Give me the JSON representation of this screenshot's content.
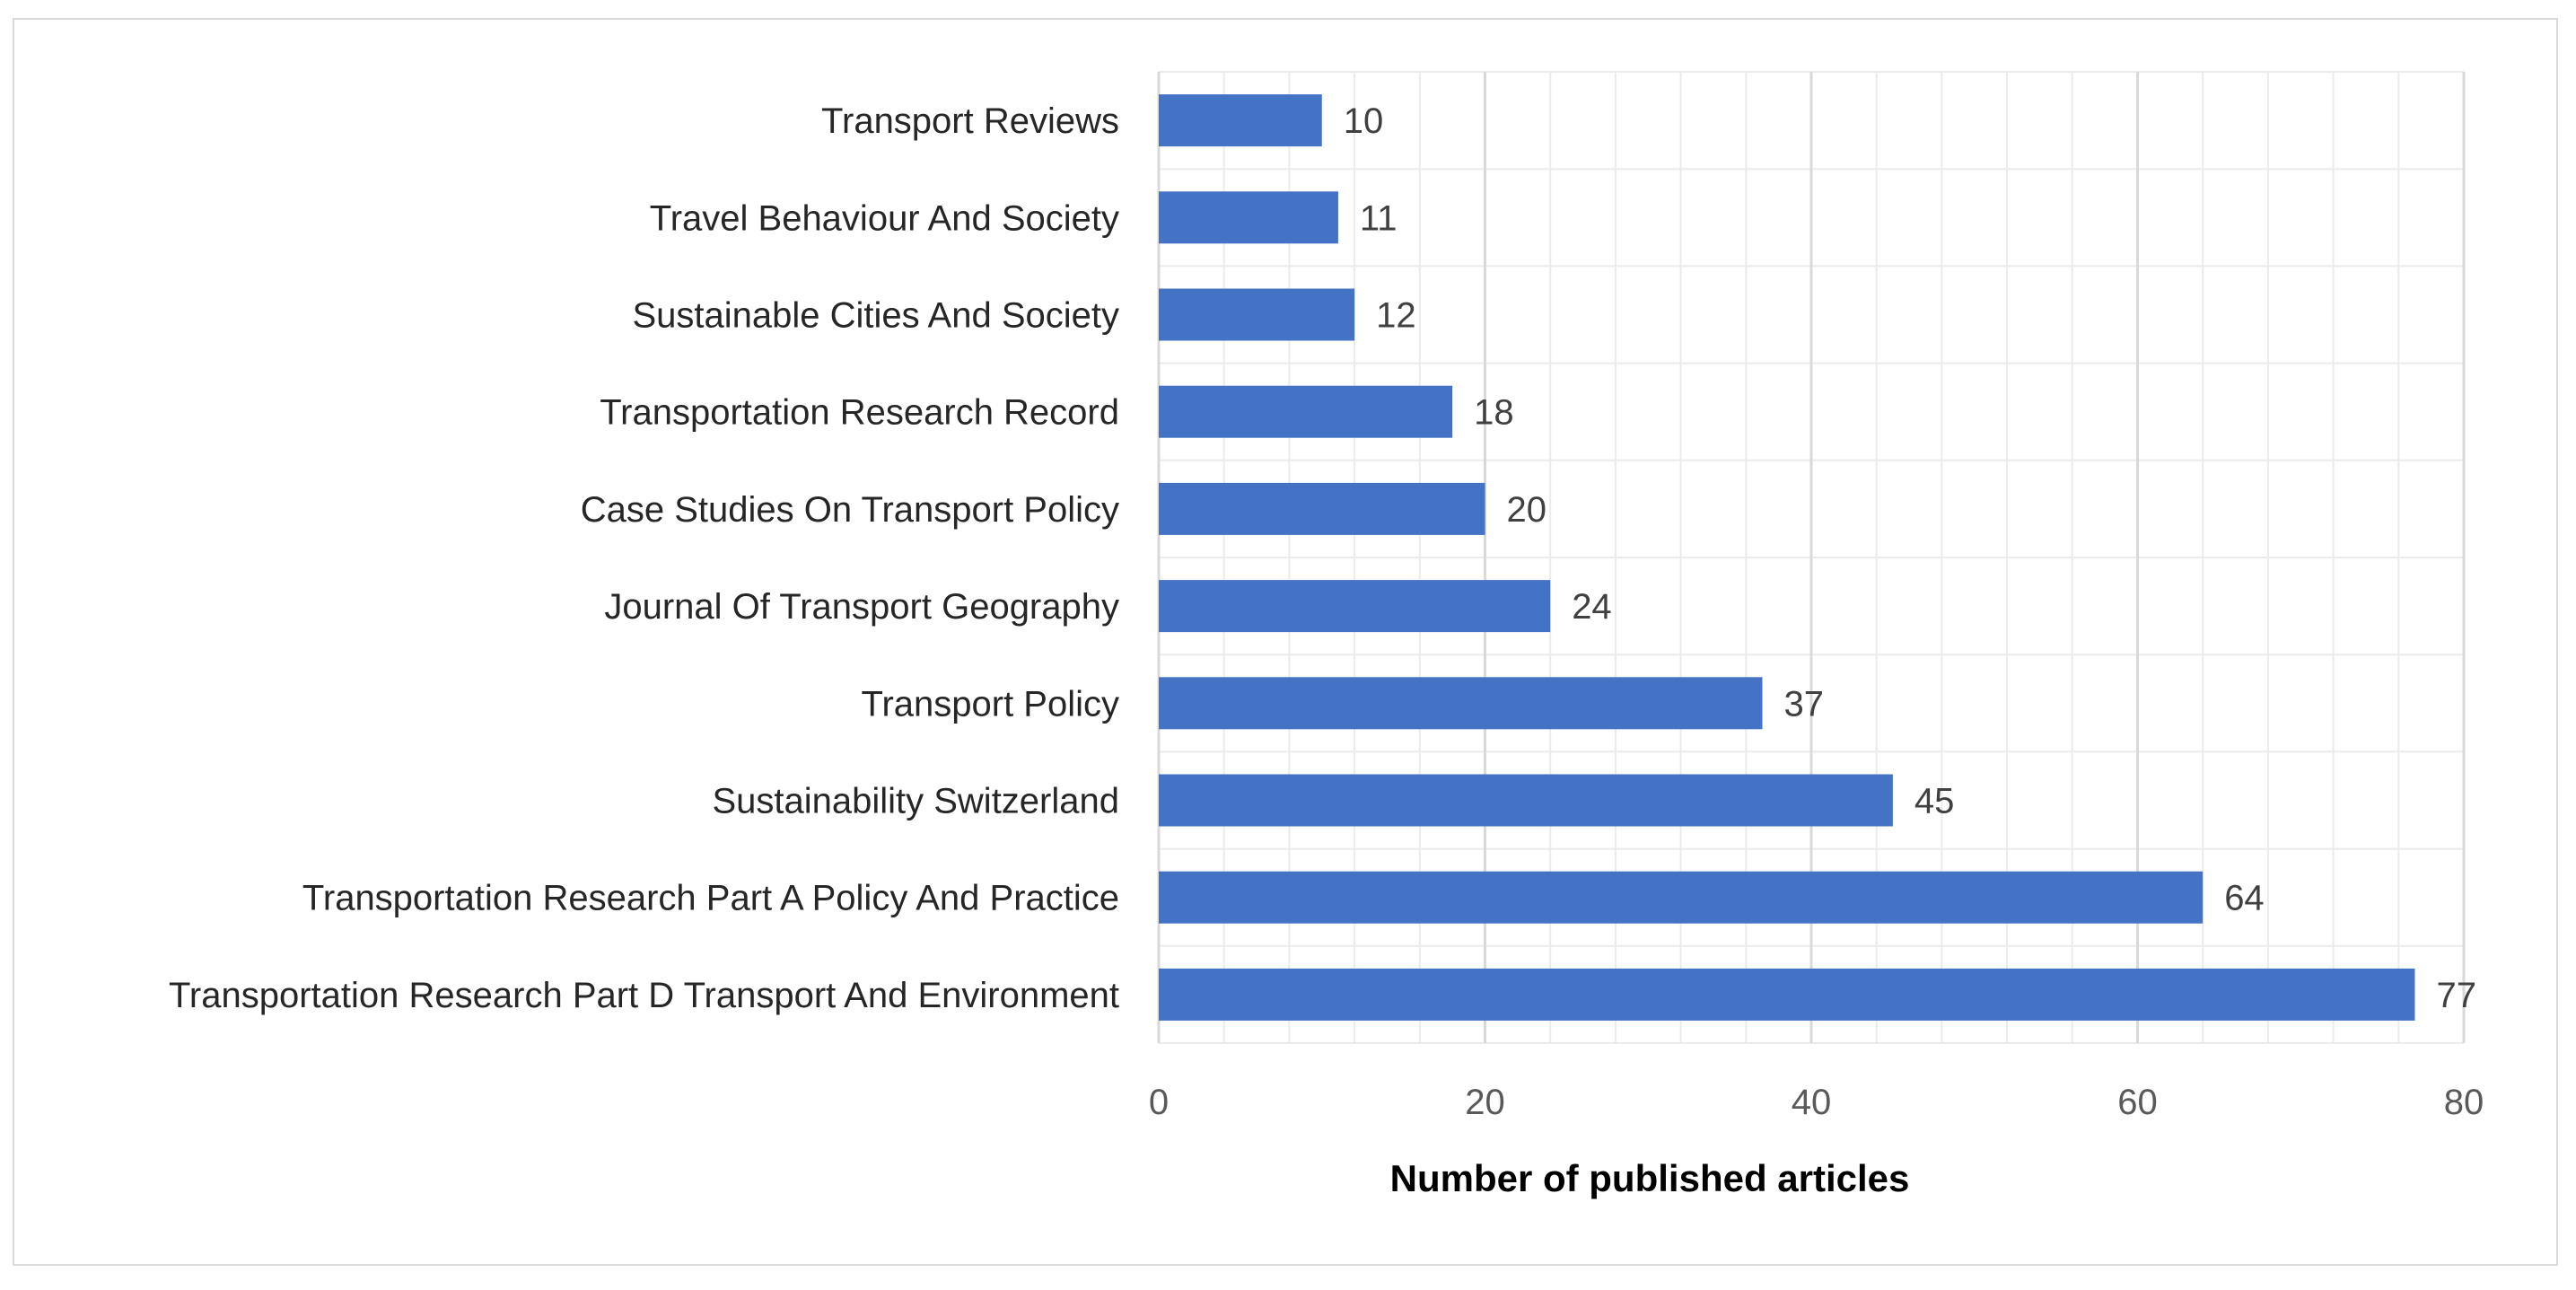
{
  "chart_data": {
    "type": "bar",
    "orientation": "horizontal",
    "title": "",
    "xlabel": "Number of published articles",
    "ylabel": "",
    "xlim": [
      0,
      80
    ],
    "major_ticks": [
      0,
      20,
      40,
      60,
      80
    ],
    "minor_tick_step": 4,
    "grid": true,
    "legend": "none",
    "categories": [
      "Transport Reviews",
      "Travel Behaviour And Society",
      "Sustainable Cities And Society",
      "Transportation Research Record",
      "Case Studies On Transport Policy",
      "Journal Of Transport Geography",
      "Transport Policy",
      "Sustainability Switzerland",
      "Transportation Research Part A Policy And Practice",
      "Transportation Research Part D Transport And Environment"
    ],
    "values": [
      10,
      11,
      12,
      18,
      20,
      24,
      37,
      45,
      64,
      77
    ],
    "colors": {
      "bar": "#4472C4",
      "major_grid": "#d9d9d9",
      "minor_grid": "#ebebeb",
      "frame": "#d9d9d9"
    }
  }
}
